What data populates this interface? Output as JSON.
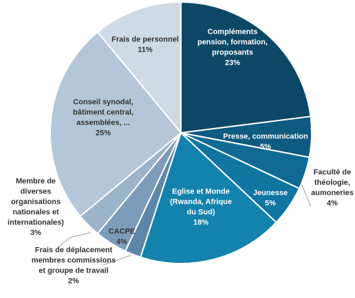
{
  "chart_data": {
    "type": "pie",
    "slices": [
      {
        "label": [
          "Compléments",
          "pension, formation,",
          "proposants"
        ],
        "value_label": "23%",
        "value": 23,
        "color": "#0d4766"
      },
      {
        "label": [
          "Presse, communication"
        ],
        "value_label": "5%",
        "value": 5,
        "color": "#0f5a80"
      },
      {
        "label": [
          "Faculté de",
          "théologie,",
          "aumoneries"
        ],
        "value_label": "4%",
        "value": 4,
        "color": "#106a93"
      },
      {
        "label": [
          "Jeunesse"
        ],
        "value_label": "5%",
        "value": 5,
        "color": "#1075a0"
      },
      {
        "label": [
          "Eglise et Monde",
          "(Rwanda, Afrique",
          "du Sud)"
        ],
        "value_label": "18%",
        "value": 18,
        "color": "#1382ad"
      },
      {
        "label": [
          "Frais de déplacement",
          "membres commissions",
          "et groupe de travail"
        ],
        "value_label": "2%",
        "value": 2,
        "color": "#5d86a8"
      },
      {
        "label": [
          "CACPE"
        ],
        "value_label": "4%",
        "value": 4,
        "color": "#7d9cb9"
      },
      {
        "label": [
          "Membre de",
          "diverses",
          "organisations",
          "nationales et",
          "internationales)"
        ],
        "value_label": "3%",
        "value": 3,
        "color": "#9cb4ca"
      },
      {
        "label": [
          "Conseil synodal,",
          "bâtiment central,",
          "assemblées, ..."
        ],
        "value_label": "25%",
        "value": 25,
        "color": "#b4c6d8"
      },
      {
        "label": [
          "Frais de personnel"
        ],
        "value_label": "11%",
        "value": 11,
        "color": "#cfdae5"
      }
    ]
  }
}
